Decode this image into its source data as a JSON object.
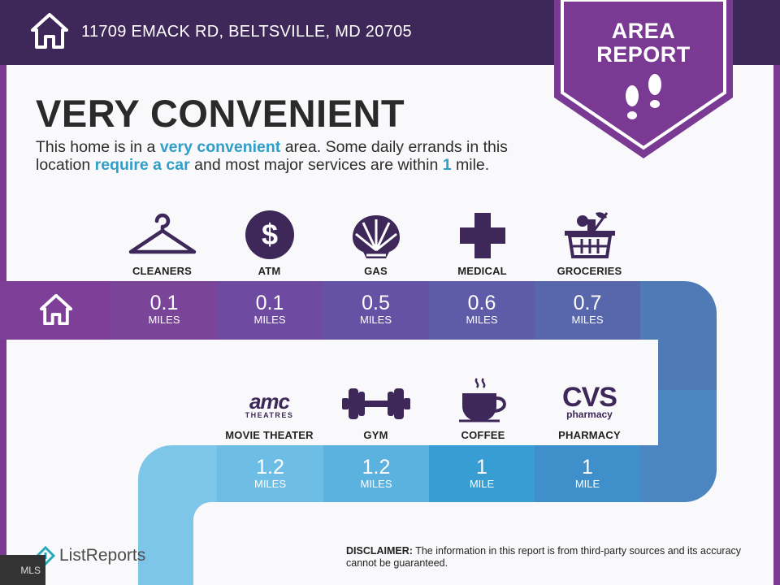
{
  "header": {
    "address": "11709 EMACK RD, BELTSVILLE, MD 20705",
    "badge_line1": "AREA",
    "badge_line2": "REPORT"
  },
  "headline": "VERY CONVENIENT",
  "description": {
    "p1": "This home is in a ",
    "h1": "very convenient",
    "p2": " area. Some daily errands in this location ",
    "h2": "require a car",
    "p3": " and most major services are within ",
    "h3": "1",
    "p4": " mile."
  },
  "row1": [
    {
      "label": "CLEANERS",
      "icon": "hanger-icon",
      "distance": "0.1",
      "unit": "MILES"
    },
    {
      "label": "ATM",
      "icon": "dollar-icon",
      "distance": "0.1",
      "unit": "MILES"
    },
    {
      "label": "GAS",
      "icon": "shell-icon",
      "distance": "0.5",
      "unit": "MILES"
    },
    {
      "label": "MEDICAL",
      "icon": "medical-cross-icon",
      "distance": "0.6",
      "unit": "MILES"
    },
    {
      "label": "GROCERIES",
      "icon": "grocery-basket-icon",
      "distance": "0.7",
      "unit": "MILES"
    }
  ],
  "row2": [
    {
      "label": "MOVIE THEATER",
      "icon": "amc-theatres-logo",
      "logo_line1": "amc",
      "logo_line2": "THEATRES",
      "distance": "1.2",
      "unit": "MILES"
    },
    {
      "label": "GYM",
      "icon": "dumbbell-icon",
      "distance": "1.2",
      "unit": "MILES"
    },
    {
      "label": "COFFEE",
      "icon": "coffee-cup-icon",
      "distance": "1",
      "unit": "MILE"
    },
    {
      "label": "PHARMACY",
      "icon": "cvs-pharmacy-logo",
      "logo_line1": "CVS",
      "logo_line2": "pharmacy",
      "distance": "1",
      "unit": "MILE"
    }
  ],
  "footer": {
    "brand": "ListReports",
    "disclaimer_label": "DISCLAIMER:",
    "disclaimer_text": " The information in this report is from third-party sources and its accuracy cannot be guaranteed.",
    "mls": "MLS"
  },
  "colors": {
    "topbar": "#3d2859",
    "frame": "#7a3a93",
    "icon": "#3d2859",
    "accent_text": "#2f9fc9"
  }
}
